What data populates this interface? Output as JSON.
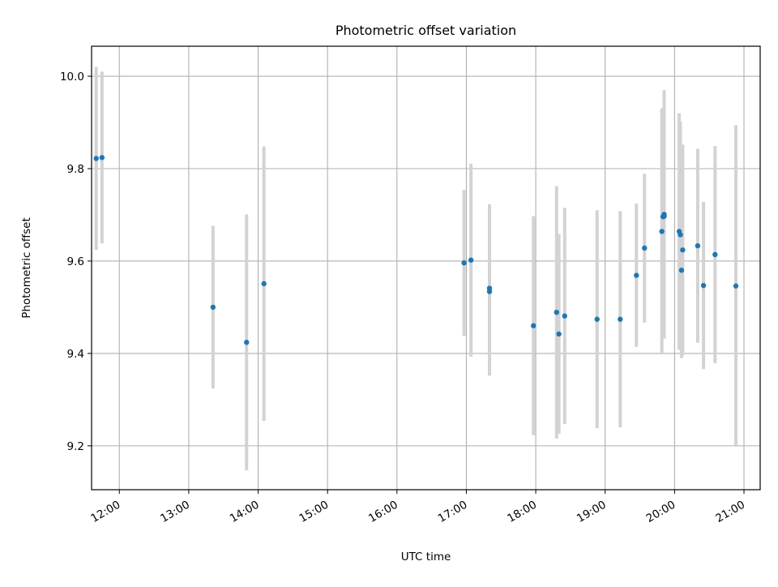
{
  "chart_data": {
    "type": "scatter",
    "title": "Photometric offset variation",
    "xlabel": "UTC time",
    "ylabel": "Photometric offset",
    "x_type": "time",
    "xlim": [
      "11:36",
      "21:14"
    ],
    "ylim": [
      9.105,
      10.065
    ],
    "grid": true,
    "xticks": [
      "12:00",
      "13:00",
      "14:00",
      "15:00",
      "16:00",
      "17:00",
      "18:00",
      "19:00",
      "20:00",
      "21:00"
    ],
    "yticks": [
      9.2,
      9.4,
      9.6,
      9.8,
      10.0
    ],
    "ytick_labels": [
      "9.2",
      "9.4",
      "9.6",
      "9.8",
      "10.0"
    ],
    "colors": {
      "point": "#1f77b4",
      "errorbar": "#d3d3d3",
      "grid": "#b0b0b0"
    },
    "points": [
      {
        "x": "11:40",
        "y": 9.822,
        "err": 0.198
      },
      {
        "x": "11:45",
        "y": 9.824,
        "err": 0.186
      },
      {
        "x": "13:21",
        "y": 9.5,
        "err": 0.176
      },
      {
        "x": "13:50",
        "y": 9.424,
        "err": 0.277
      },
      {
        "x": "14:05",
        "y": 9.551,
        "err": 0.297
      },
      {
        "x": "16:58",
        "y": 9.596,
        "err": 0.158
      },
      {
        "x": "17:04",
        "y": 9.602,
        "err": 0.209
      },
      {
        "x": "17:20",
        "y": 9.534,
        "err": 0.182
      },
      {
        "x": "17:20",
        "y": 9.541,
        "err": 0.182
      },
      {
        "x": "17:58",
        "y": 9.46,
        "err": 0.237
      },
      {
        "x": "18:18",
        "y": 9.489,
        "err": 0.273
      },
      {
        "x": "18:20",
        "y": 9.442,
        "err": 0.216
      },
      {
        "x": "18:25",
        "y": 9.481,
        "err": 0.234
      },
      {
        "x": "18:53",
        "y": 9.474,
        "err": 0.236
      },
      {
        "x": "19:13",
        "y": 9.474,
        "err": 0.234
      },
      {
        "x": "19:27",
        "y": 9.569,
        "err": 0.155
      },
      {
        "x": "19:34",
        "y": 9.628,
        "err": 0.161
      },
      {
        "x": "19:49",
        "y": 9.664,
        "err": 0.266
      },
      {
        "x": "19:50",
        "y": 9.696,
        "err": 0.235
      },
      {
        "x": "19:51",
        "y": 9.701,
        "err": 0.269
      },
      {
        "x": "19:51",
        "y": 9.697,
        "err": 0.258
      },
      {
        "x": "20:04",
        "y": 9.664,
        "err": 0.256
      },
      {
        "x": "20:05",
        "y": 9.657,
        "err": 0.245
      },
      {
        "x": "20:06",
        "y": 9.58,
        "err": 0.19
      },
      {
        "x": "20:07",
        "y": 9.624,
        "err": 0.228
      },
      {
        "x": "20:20",
        "y": 9.633,
        "err": 0.21
      },
      {
        "x": "20:25",
        "y": 9.547,
        "err": 0.181
      },
      {
        "x": "20:35",
        "y": 9.614,
        "err": 0.235
      },
      {
        "x": "20:53",
        "y": 9.546,
        "err": 0.348
      }
    ]
  }
}
